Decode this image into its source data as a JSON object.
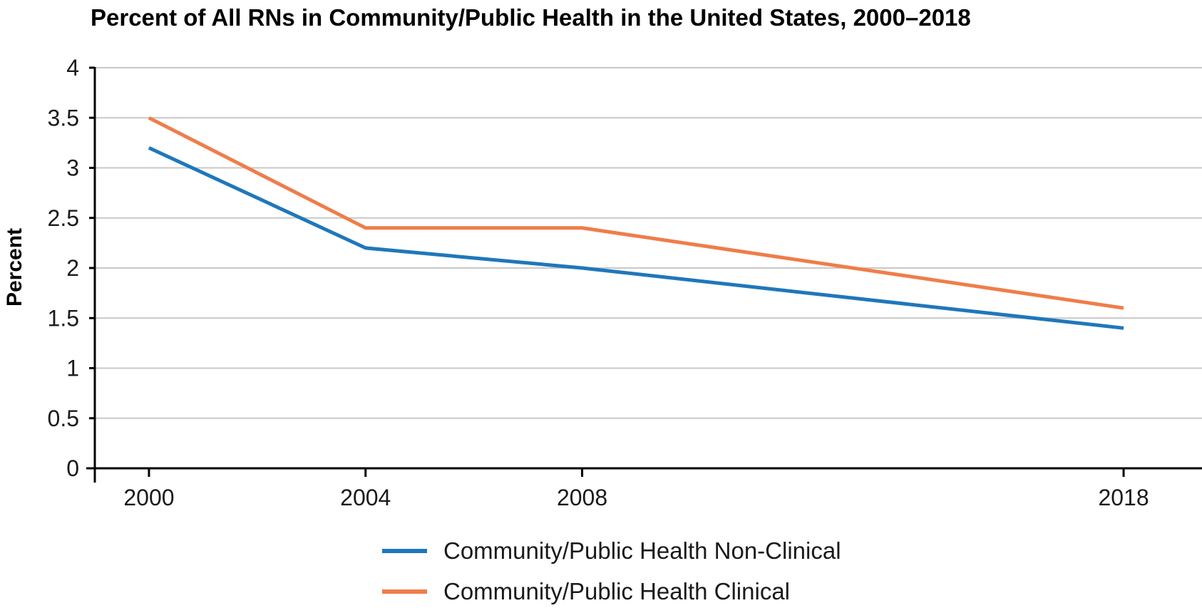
{
  "chart_data": {
    "type": "line",
    "title": "Percent of All RNs in Community/Public Health in the United States, 2000–2018",
    "xlabel": "",
    "ylabel": "Percent",
    "x": [
      2000,
      2004,
      2008,
      2018
    ],
    "x_tick_labels": [
      "2000",
      "2004",
      "2008",
      "2018"
    ],
    "xlim": [
      1999,
      2019
    ],
    "ylim": [
      0,
      4
    ],
    "y_ticks": [
      0,
      0.5,
      1,
      1.5,
      2,
      2.5,
      3,
      3.5,
      4
    ],
    "y_tick_labels": [
      "0",
      "0.5",
      "1",
      "1.5",
      "2",
      "2.5",
      "3",
      "3.5",
      "4"
    ],
    "grid": true,
    "legend_position": "bottom",
    "series": [
      {
        "name": "Community/Public Health Non-Clinical",
        "color": "#1f77bb",
        "values": [
          3.2,
          2.2,
          2.0,
          1.4
        ]
      },
      {
        "name": "Community/Public Health Clinical",
        "color": "#ef7d4a",
        "values": [
          3.5,
          2.4,
          2.4,
          1.6
        ]
      }
    ]
  }
}
